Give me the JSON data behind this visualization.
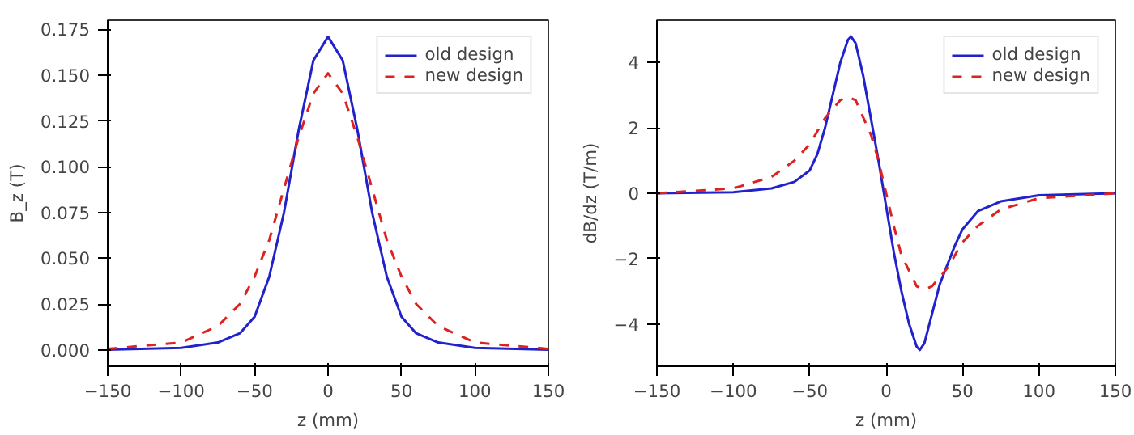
{
  "chart_data": [
    {
      "type": "line",
      "xlabel": "z (mm)",
      "ylabel": "B_z (T)",
      "xlim": [
        -150,
        150
      ],
      "ylim": [
        -0.009,
        0.18
      ],
      "xticks": [
        {
          "value": -150,
          "label": "−150"
        },
        {
          "value": -100,
          "label": "−100"
        },
        {
          "value": -50,
          "label": "−50"
        },
        0,
        50,
        100,
        150
      ],
      "yticks": [
        {
          "value": 0,
          "label": "0.000"
        },
        {
          "value": 0.025,
          "label": "0.025"
        },
        {
          "value": 0.05,
          "label": "0.050"
        },
        {
          "value": 0.075,
          "label": "0.075"
        },
        {
          "value": 0.1,
          "label": "0.100"
        },
        {
          "value": 0.125,
          "label": "0.125"
        },
        {
          "value": 0.15,
          "label": "0.150"
        },
        {
          "value": 0.175,
          "label": "0.175"
        }
      ],
      "legend": "top right",
      "series": [
        {
          "name": "old design",
          "color": "#2222cc",
          "line_style": "solid",
          "x": [
            -150,
            -100,
            -75,
            -60,
            -50,
            -40,
            -30,
            -20,
            -10,
            0,
            10,
            20,
            30,
            40,
            50,
            60,
            75,
            100,
            150
          ],
          "values": [
            0,
            0.001,
            0.004,
            0.009,
            0.018,
            0.04,
            0.075,
            0.12,
            0.158,
            0.171,
            0.158,
            0.12,
            0.075,
            0.04,
            0.018,
            0.009,
            0.004,
            0.001,
            0
          ]
        },
        {
          "name": "new design",
          "color": "#dd2222",
          "line_style": "dashed",
          "x": [
            -150,
            -100,
            -75,
            -60,
            -50,
            -40,
            -30,
            -20,
            -10,
            0,
            10,
            20,
            30,
            40,
            50,
            60,
            75,
            100,
            150
          ],
          "values": [
            0.0005,
            0.004,
            0.013,
            0.025,
            0.04,
            0.06,
            0.088,
            0.116,
            0.14,
            0.151,
            0.14,
            0.116,
            0.088,
            0.06,
            0.04,
            0.025,
            0.013,
            0.004,
            0.0005
          ]
        }
      ]
    },
    {
      "type": "line",
      "xlabel": "z (mm)",
      "ylabel": "dB/dz (T/m)",
      "xlim": [
        -150,
        150
      ],
      "ylim": [
        -5.3,
        5.3
      ],
      "xticks": [
        {
          "value": -150,
          "label": "−150"
        },
        {
          "value": -100,
          "label": "−100"
        },
        {
          "value": -50,
          "label": "−50"
        },
        0,
        50,
        100,
        150
      ],
      "yticks": [
        {
          "value": -4,
          "label": "−4"
        },
        {
          "value": -2,
          "label": "−2"
        },
        0,
        2,
        4
      ],
      "legend": "top right",
      "series": [
        {
          "name": "old design",
          "color": "#2222cc",
          "line_style": "solid",
          "x": [
            -150,
            -100,
            -75,
            -60,
            -50,
            -45,
            -40,
            -35,
            -30,
            -25,
            -23,
            -20,
            -15,
            -10,
            -5,
            0,
            5,
            10,
            15,
            20,
            22,
            25,
            30,
            35,
            40,
            45,
            50,
            60,
            75,
            100,
            150
          ],
          "values": [
            0,
            0.03,
            0.15,
            0.35,
            0.7,
            1.2,
            2.0,
            3.0,
            4.0,
            4.7,
            4.8,
            4.6,
            3.6,
            2.3,
            1.0,
            -0.4,
            -1.8,
            -3.0,
            -4.0,
            -4.7,
            -4.8,
            -4.6,
            -3.7,
            -2.8,
            -2.2,
            -1.6,
            -1.1,
            -0.55,
            -0.25,
            -0.06,
            0
          ]
        },
        {
          "name": "new design",
          "color": "#dd2222",
          "line_style": "dashed",
          "x": [
            -150,
            -100,
            -75,
            -60,
            -50,
            -40,
            -30,
            -25,
            -20,
            -10,
            -5,
            0,
            5,
            10,
            20,
            25,
            30,
            40,
            50,
            60,
            75,
            100,
            150
          ],
          "values": [
            0,
            0.15,
            0.5,
            1.0,
            1.5,
            2.3,
            2.85,
            2.95,
            2.85,
            1.8,
            1.0,
            0,
            -1.0,
            -1.9,
            -2.85,
            -2.95,
            -2.85,
            -2.3,
            -1.5,
            -1.0,
            -0.5,
            -0.15,
            0
          ]
        }
      ]
    }
  ]
}
